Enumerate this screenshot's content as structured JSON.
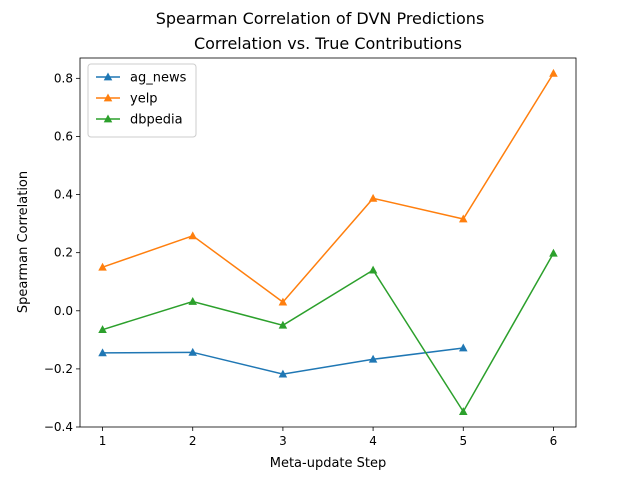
{
  "chart_data": {
    "type": "line",
    "suptitle": "Spearman Correlation of DVN Predictions",
    "title": "Correlation vs. True Contributions",
    "xlabel": "Meta-update Step",
    "ylabel": "Spearman Correlation",
    "xlim": [
      0.75,
      6.25
    ],
    "ylim": [
      -0.4,
      0.87
    ],
    "xticks": [
      1,
      2,
      3,
      4,
      5,
      6
    ],
    "xtick_labels": [
      "1",
      "2",
      "3",
      "4",
      "5",
      "6"
    ],
    "yticks": [
      -0.4,
      -0.2,
      0.0,
      0.2,
      0.4,
      0.6,
      0.8
    ],
    "ytick_labels": [
      "−0.4",
      "−0.2",
      "0.0",
      "0.2",
      "0.4",
      "0.6",
      "0.8"
    ],
    "grid": false,
    "legend_position": "upper-left",
    "marker": "triangle",
    "series": [
      {
        "name": "ag_news",
        "color": "#1f77b4",
        "x": [
          1,
          2,
          3,
          4,
          5
        ],
        "y": [
          -0.145,
          -0.143,
          -0.218,
          -0.167,
          -0.128
        ]
      },
      {
        "name": "yelp",
        "color": "#ff7f0e",
        "x": [
          1,
          2,
          3,
          4,
          5,
          6
        ],
        "y": [
          0.15,
          0.258,
          0.03,
          0.387,
          0.316,
          0.817
        ]
      },
      {
        "name": "dbpedia",
        "color": "#2ca02c",
        "x": [
          1,
          2,
          3,
          4,
          5,
          6
        ],
        "y": [
          -0.065,
          0.032,
          -0.05,
          0.14,
          -0.347,
          0.198
        ]
      }
    ]
  }
}
